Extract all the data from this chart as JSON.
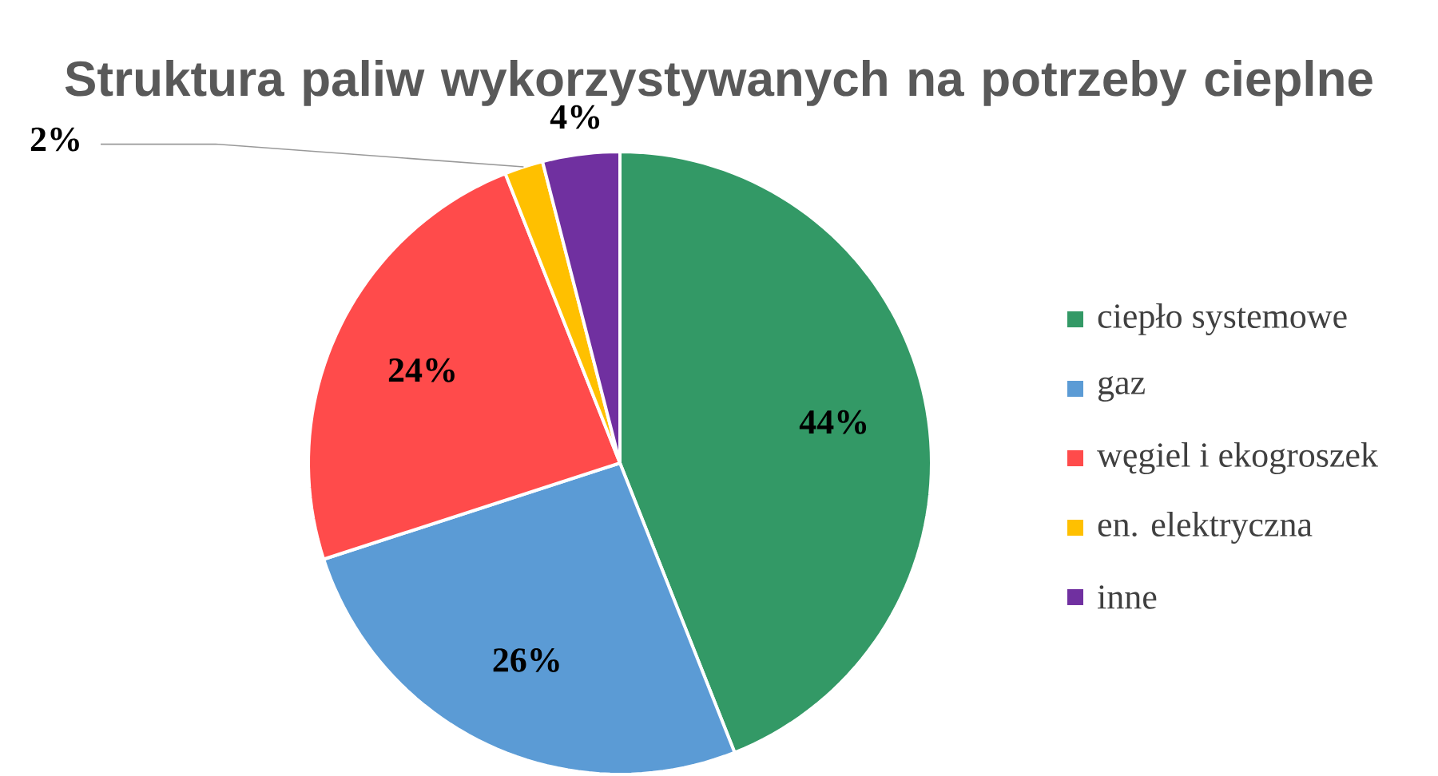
{
  "chart_data": {
    "type": "pie",
    "title": "Struktura paliw wykorzystywanych na potrzeby cieplne",
    "categories": [
      "ciepło systemowe",
      "gaz",
      "węgiel i ekogroszek",
      "en. elektryczna",
      "inne"
    ],
    "values": [
      44,
      26,
      24,
      2,
      4
    ],
    "colors": [
      "#339966",
      "#5b9bd5",
      "#ff4b4b",
      "#ffc000",
      "#7030a0"
    ],
    "value_labels": [
      "44%",
      "26%",
      "24%",
      "2%",
      "4%"
    ],
    "legend": "right"
  }
}
